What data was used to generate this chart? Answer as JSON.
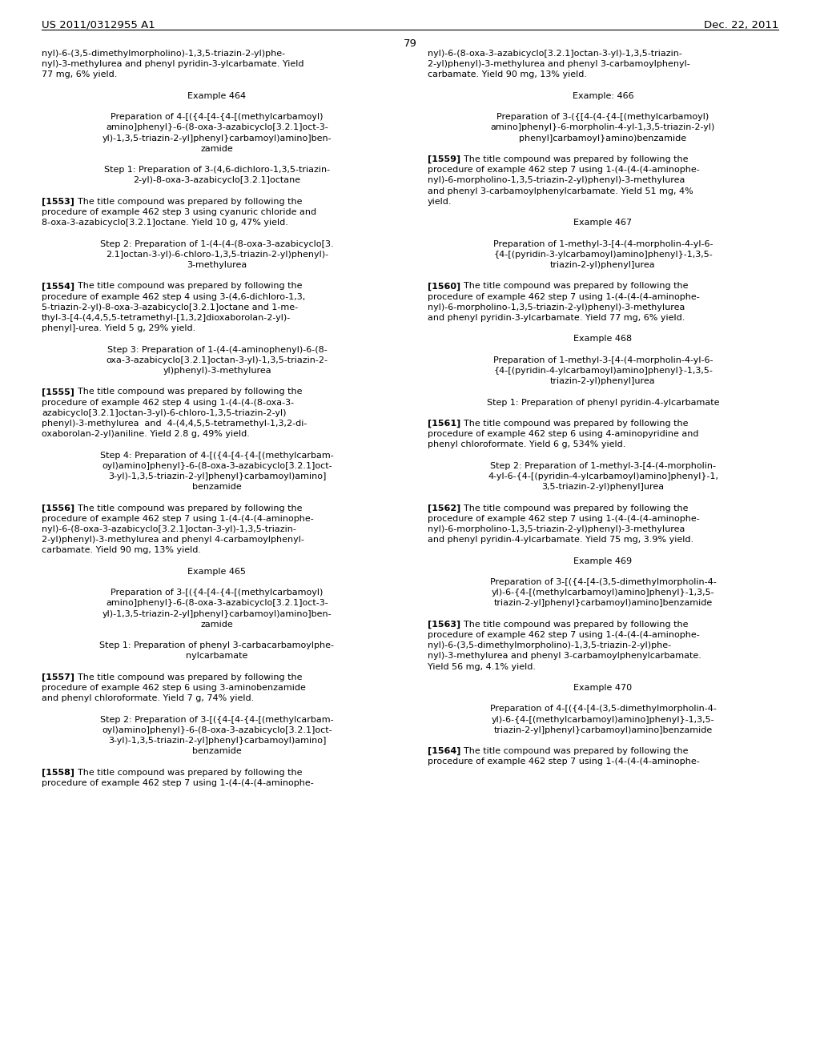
{
  "header_left": "US 2011/0312955 A1",
  "header_right": "Dec. 22, 2011",
  "page_number": "79",
  "background_color": "#ffffff",
  "left_column_lines": [
    {
      "t": "body",
      "s": "nyl)-6-(3,5-dimethylmorpholino)-1,3,5-triazin-2-yl)phe-"
    },
    {
      "t": "body",
      "s": "nyl)-3-methylurea and phenyl pyridin-3-ylcarbamate. Yield"
    },
    {
      "t": "body",
      "s": "77 mg, 6% yield."
    },
    {
      "t": "space"
    },
    {
      "t": "center",
      "s": "Example 464"
    },
    {
      "t": "space"
    },
    {
      "t": "center",
      "s": "Preparation of 4-[({4-[4-{4-[(methylcarbamoyl)"
    },
    {
      "t": "center",
      "s": "amino]phenyl}-6-(8-oxa-3-azabicyclo[3.2.1]oct-3-"
    },
    {
      "t": "center",
      "s": "yl)-1,3,5-triazin-2-yl]phenyl}carbamoyl)amino]ben-"
    },
    {
      "t": "center",
      "s": "zamide"
    },
    {
      "t": "space"
    },
    {
      "t": "center",
      "s": "Step 1: Preparation of 3-(4,6-dichloro-1,3,5-triazin-"
    },
    {
      "t": "center",
      "s": "2-yl)-8-oxa-3-azabicyclo[3.2.1]octane"
    },
    {
      "t": "space"
    },
    {
      "t": "para_start",
      "tag": "[1553]",
      "s": "The title compound was prepared by following the"
    },
    {
      "t": "body",
      "s": "procedure of example 462 step 3 using cyanuric chloride and"
    },
    {
      "t": "body",
      "s": "8-oxa-3-azabicyclo[3.2.1]octane. Yield 10 g, 47% yield."
    },
    {
      "t": "space"
    },
    {
      "t": "center",
      "s": "Step 2: Preparation of 1-(4-(4-(8-oxa-3-azabicyclo[3."
    },
    {
      "t": "center",
      "s": "2.1]octan-3-yl)-6-chloro-1,3,5-triazin-2-yl)phenyl)-"
    },
    {
      "t": "center",
      "s": "3-methylurea"
    },
    {
      "t": "space"
    },
    {
      "t": "para_start",
      "tag": "[1554]",
      "s": "The title compound was prepared by following the"
    },
    {
      "t": "body",
      "s": "procedure of example 462 step 4 using 3-(4,6-dichloro-1,3,"
    },
    {
      "t": "body",
      "s": "5-triazin-2-yl)-8-oxa-3-azabicyclo[3.2.1]octane and 1-me-"
    },
    {
      "t": "body",
      "s": "thyl-3-[4-(4,4,5,5-tetramethyl-[1,3,2]dioxaborolan-2-yl)-"
    },
    {
      "t": "body",
      "s": "phenyl]-urea. Yield 5 g, 29% yield."
    },
    {
      "t": "space"
    },
    {
      "t": "center",
      "s": "Step 3: Preparation of 1-(4-(4-aminophenyl)-6-(8-"
    },
    {
      "t": "center",
      "s": "oxa-3-azabicyclo[3.2.1]octan-3-yl)-1,3,5-triazin-2-"
    },
    {
      "t": "center",
      "s": "yl)phenyl)-3-methylurea"
    },
    {
      "t": "space"
    },
    {
      "t": "para_start",
      "tag": "[1555]",
      "s": "The title compound was prepared by following the"
    },
    {
      "t": "body",
      "s": "procedure of example 462 step 4 using 1-(4-(4-(8-oxa-3-"
    },
    {
      "t": "body",
      "s": "azabicyclo[3.2.1]octan-3-yl)-6-chloro-1,3,5-triazin-2-yl)"
    },
    {
      "t": "body",
      "s": "phenyl)-3-methylurea  and  4-(4,4,5,5-tetramethyl-1,3,2-di-"
    },
    {
      "t": "body",
      "s": "oxaborolan-2-yl)aniline. Yield 2.8 g, 49% yield."
    },
    {
      "t": "space"
    },
    {
      "t": "center",
      "s": "Step 4: Preparation of 4-[({4-[4-{4-[(methylcarbam-"
    },
    {
      "t": "center",
      "s": "oyl)amino]phenyl}-6-(8-oxa-3-azabicyclo[3.2.1]oct-"
    },
    {
      "t": "center",
      "s": "3-yl)-1,3,5-triazin-2-yl]phenyl}carbamoyl)amino]"
    },
    {
      "t": "center",
      "s": "benzamide"
    },
    {
      "t": "space"
    },
    {
      "t": "para_start",
      "tag": "[1556]",
      "s": "The title compound was prepared by following the"
    },
    {
      "t": "body",
      "s": "procedure of example 462 step 7 using 1-(4-(4-(4-aminophe-"
    },
    {
      "t": "body",
      "s": "nyl)-6-(8-oxa-3-azabicyclo[3.2.1]octan-3-yl)-1,3,5-triazin-"
    },
    {
      "t": "body",
      "s": "2-yl)phenyl)-3-methylurea and phenyl 4-carbamoylphenyl-"
    },
    {
      "t": "body",
      "s": "carbamate. Yield 90 mg, 13% yield."
    },
    {
      "t": "space"
    },
    {
      "t": "center",
      "s": "Example 465"
    },
    {
      "t": "space"
    },
    {
      "t": "center",
      "s": "Preparation of 3-[({4-[4-{4-[(methylcarbamoyl)"
    },
    {
      "t": "center",
      "s": "amino]phenyl}-6-(8-oxa-3-azabicyclo[3.2.1]oct-3-"
    },
    {
      "t": "center",
      "s": "yl)-1,3,5-triazin-2-yl]phenyl}carbamoyl)amino]ben-"
    },
    {
      "t": "center",
      "s": "zamide"
    },
    {
      "t": "space"
    },
    {
      "t": "center",
      "s": "Step 1: Preparation of phenyl 3-carbacarbamoylphe-"
    },
    {
      "t": "center",
      "s": "nylcarbamate"
    },
    {
      "t": "space"
    },
    {
      "t": "para_start",
      "tag": "[1557]",
      "s": "The title compound was prepared by following the"
    },
    {
      "t": "body",
      "s": "procedure of example 462 step 6 using 3-aminobenzamide"
    },
    {
      "t": "body",
      "s": "and phenyl chloroformate. Yield 7 g, 74% yield."
    },
    {
      "t": "space"
    },
    {
      "t": "center",
      "s": "Step 2: Preparation of 3-[({4-[4-{4-[(methylcarbam-"
    },
    {
      "t": "center",
      "s": "oyl)amino]phenyl}-6-(8-oxa-3-azabicyclo[3.2.1]oct-"
    },
    {
      "t": "center",
      "s": "3-yl)-1,3,5-triazin-2-yl]phenyl}carbamoyl)amino]"
    },
    {
      "t": "center",
      "s": "benzamide"
    },
    {
      "t": "space"
    },
    {
      "t": "para_start",
      "tag": "[1558]",
      "s": "The title compound was prepared by following the"
    },
    {
      "t": "body",
      "s": "procedure of example 462 step 7 using 1-(4-(4-(4-aminophe-"
    }
  ],
  "right_column_lines": [
    {
      "t": "body",
      "s": "nyl)-6-(8-oxa-3-azabicyclo[3.2.1]octan-3-yl)-1,3,5-triazin-"
    },
    {
      "t": "body",
      "s": "2-yl)phenyl)-3-methylurea and phenyl 3-carbamoylphenyl-"
    },
    {
      "t": "body",
      "s": "carbamate. Yield 90 mg, 13% yield."
    },
    {
      "t": "space"
    },
    {
      "t": "center",
      "s": "Example: 466"
    },
    {
      "t": "space"
    },
    {
      "t": "center",
      "s": "Preparation of 3-({[4-(4-{4-[(methylcarbamoyl)"
    },
    {
      "t": "center",
      "s": "amino]phenyl}-6-morpholin-4-yl-1,3,5-triazin-2-yl)"
    },
    {
      "t": "center",
      "s": "phenyl]carbamoyl}amino)benzamide"
    },
    {
      "t": "space"
    },
    {
      "t": "para_start",
      "tag": "[1559]",
      "s": "The title compound was prepared by following the"
    },
    {
      "t": "body",
      "s": "procedure of example 462 step 7 using 1-(4-(4-(4-aminophe-"
    },
    {
      "t": "body",
      "s": "nyl)-6-morpholino-1,3,5-triazin-2-yl)phenyl)-3-methylurea"
    },
    {
      "t": "body",
      "s": "and phenyl 3-carbamoylphenylcarbamate. Yield 51 mg, 4%"
    },
    {
      "t": "body",
      "s": "yield."
    },
    {
      "t": "space"
    },
    {
      "t": "center",
      "s": "Example 467"
    },
    {
      "t": "space"
    },
    {
      "t": "center",
      "s": "Preparation of 1-methyl-3-[4-(4-morpholin-4-yl-6-"
    },
    {
      "t": "center",
      "s": "{4-[(pyridin-3-ylcarbamoyl)amino]phenyl}-1,3,5-"
    },
    {
      "t": "center",
      "s": "triazin-2-yl)phenyl]urea"
    },
    {
      "t": "space"
    },
    {
      "t": "para_start",
      "tag": "[1560]",
      "s": "The title compound was prepared by following the"
    },
    {
      "t": "body",
      "s": "procedure of example 462 step 7 using 1-(4-(4-(4-aminophe-"
    },
    {
      "t": "body",
      "s": "nyl)-6-morpholino-1,3,5-triazin-2-yl)phenyl)-3-methylurea"
    },
    {
      "t": "body",
      "s": "and phenyl pyridin-3-ylcarbamate. Yield 77 mg, 6% yield."
    },
    {
      "t": "space"
    },
    {
      "t": "center",
      "s": "Example 468"
    },
    {
      "t": "space"
    },
    {
      "t": "center",
      "s": "Preparation of 1-methyl-3-[4-(4-morpholin-4-yl-6-"
    },
    {
      "t": "center",
      "s": "{4-[(pyridin-4-ylcarbamoyl)amino]phenyl}-1,3,5-"
    },
    {
      "t": "center",
      "s": "triazin-2-yl)phenyl]urea"
    },
    {
      "t": "space"
    },
    {
      "t": "center",
      "s": "Step 1: Preparation of phenyl pyridin-4-ylcarbamate"
    },
    {
      "t": "space"
    },
    {
      "t": "para_start",
      "tag": "[1561]",
      "s": "The title compound was prepared by following the"
    },
    {
      "t": "body",
      "s": "procedure of example 462 step 6 using 4-aminopyridine and"
    },
    {
      "t": "body",
      "s": "phenyl chloroformate. Yield 6 g, 534% yield."
    },
    {
      "t": "space"
    },
    {
      "t": "center",
      "s": "Step 2: Preparation of 1-methyl-3-[4-(4-morpholin-"
    },
    {
      "t": "center",
      "s": "4-yl-6-{4-[(pyridin-4-ylcarbamoyl)amino]phenyl}-1,"
    },
    {
      "t": "center",
      "s": "3,5-triazin-2-yl)phenyl]urea"
    },
    {
      "t": "space"
    },
    {
      "t": "para_start",
      "tag": "[1562]",
      "s": "The title compound was prepared by following the"
    },
    {
      "t": "body",
      "s": "procedure of example 462 step 7 using 1-(4-(4-(4-aminophe-"
    },
    {
      "t": "body",
      "s": "nyl)-6-morpholino-1,3,5-triazin-2-yl)phenyl)-3-methylurea"
    },
    {
      "t": "body",
      "s": "and phenyl pyridin-4-ylcarbamate. Yield 75 mg, 3.9% yield."
    },
    {
      "t": "space"
    },
    {
      "t": "center",
      "s": "Example 469"
    },
    {
      "t": "space"
    },
    {
      "t": "center",
      "s": "Preparation of 3-[({4-[4-(3,5-dimethylmorpholin-4-"
    },
    {
      "t": "center",
      "s": "yl)-6-{4-[(methylcarbamoyl)amino]phenyl}-1,3,5-"
    },
    {
      "t": "center",
      "s": "triazin-2-yl]phenyl}carbamoyl)amino]benzamide"
    },
    {
      "t": "space"
    },
    {
      "t": "para_start",
      "tag": "[1563]",
      "s": "The title compound was prepared by following the"
    },
    {
      "t": "body",
      "s": "procedure of example 462 step 7 using 1-(4-(4-(4-aminophe-"
    },
    {
      "t": "body",
      "s": "nyl)-6-(3,5-dimethylmorpholino)-1,3,5-triazin-2-yl)phe-"
    },
    {
      "t": "body",
      "s": "nyl)-3-methylurea and phenyl 3-carbamoylphenylcarbamate."
    },
    {
      "t": "body",
      "s": "Yield 56 mg, 4.1% yield."
    },
    {
      "t": "space"
    },
    {
      "t": "center",
      "s": "Example 470"
    },
    {
      "t": "space"
    },
    {
      "t": "center",
      "s": "Preparation of 4-[({4-[4-(3,5-dimethylmorpholin-4-"
    },
    {
      "t": "center",
      "s": "yl)-6-{4-[(methylcarbamoyl)amino]phenyl}-1,3,5-"
    },
    {
      "t": "center",
      "s": "triazin-2-yl]phenyl}carbamoyl)amino]benzamide"
    },
    {
      "t": "space"
    },
    {
      "t": "para_start",
      "tag": "[1564]",
      "s": "The title compound was prepared by following the"
    },
    {
      "t": "body",
      "s": "procedure of example 462 step 7 using 1-(4-(4-(4-aminophe-"
    }
  ]
}
